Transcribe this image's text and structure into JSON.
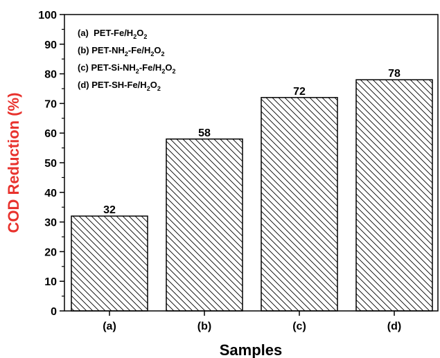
{
  "chart_data": {
    "type": "bar",
    "categories": [
      "(a)",
      "(b)",
      "(c)",
      "(d)"
    ],
    "values": [
      32,
      58,
      72,
      78
    ],
    "data_labels": [
      "32",
      "58",
      "72",
      "78"
    ],
    "xlabel": "Samples",
    "ylabel": "COD Reduction (%)",
    "ylim": [
      0,
      100
    ],
    "yticks": [
      0,
      10,
      20,
      30,
      40,
      50,
      60,
      70,
      80,
      90,
      100
    ],
    "ytick_labels": [
      "0",
      "10",
      "20",
      "30",
      "40",
      "50",
      "60",
      "70",
      "80",
      "90",
      "100"
    ],
    "grid": false,
    "legend_position": "top-left",
    "legend": [
      {
        "prefix": "(a)  ",
        "main": "PET-Fe/H",
        "sub1": "2",
        "mid": "O",
        "sub2": "2",
        "tail": ""
      },
      {
        "prefix": "(b) ",
        "main": "PET-NH",
        "sub1": "2",
        "mid": "-Fe/H",
        "sub2": "2",
        "tail": "O",
        "sub3": "2"
      },
      {
        "prefix": "(c) ",
        "main": "PET-Si-NH",
        "sub1": "2",
        "mid": "-Fe/H",
        "sub2": "2",
        "tail": "O",
        "sub3": "2"
      },
      {
        "prefix": "(d) ",
        "main": "PET-SH-Fe/H",
        "sub1": "2",
        "mid": "O",
        "sub2": "2",
        "tail": ""
      }
    ],
    "colors": {
      "ylabel": "#e8322d",
      "bar_fill": "#ffffff",
      "bar_stroke": "#000000",
      "hatch": "#000000"
    }
  }
}
